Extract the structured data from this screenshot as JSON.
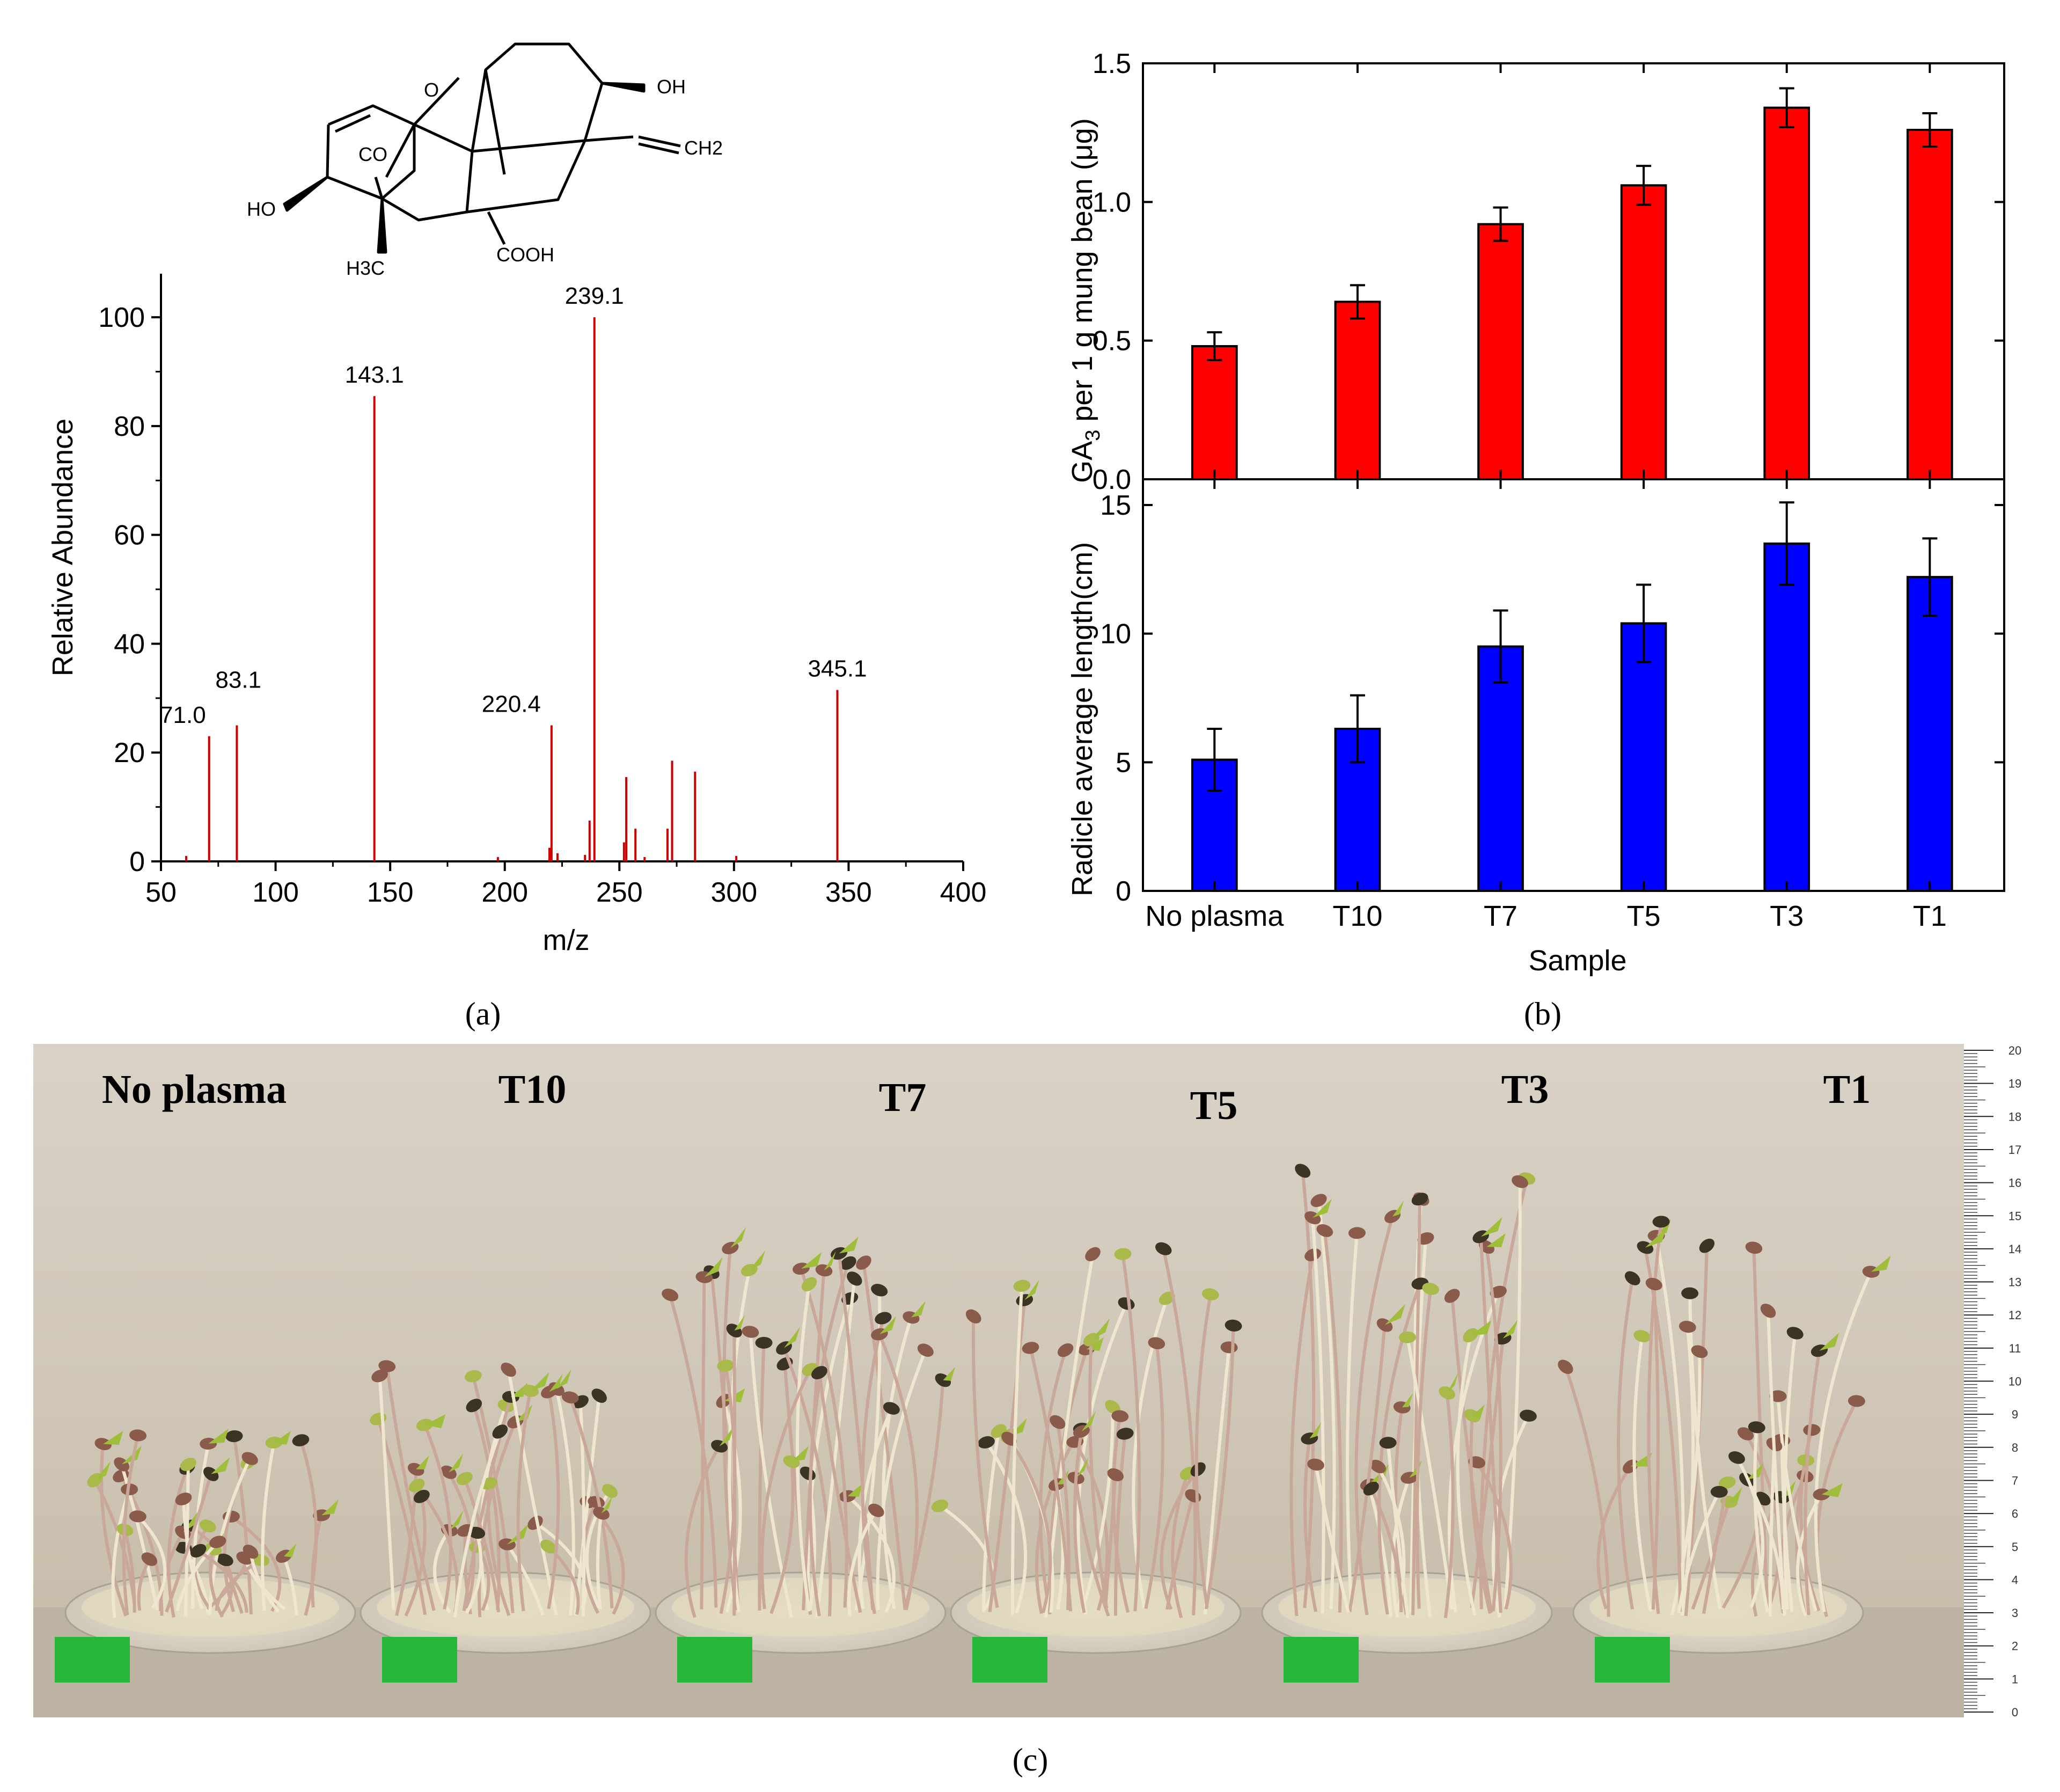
{
  "panel_labels": {
    "a": "(a)",
    "b": "(b)",
    "c": "(c)"
  },
  "structure": {
    "labels": [
      "O",
      "OH",
      "CH2",
      "CO",
      "HO",
      "H3C",
      "COOH"
    ]
  },
  "chart_data": [
    {
      "id": "mass-spectrum",
      "type": "bar",
      "title": "",
      "xlabel": "m/z",
      "ylabel": "Relative Abundance",
      "xlim": [
        50,
        400
      ],
      "ylim": [
        0,
        108
      ],
      "xticks": [
        50,
        100,
        150,
        200,
        250,
        300,
        350,
        400
      ],
      "yticks": [
        0,
        20,
        40,
        60,
        80,
        100
      ],
      "color": "#cc0000",
      "peaks": [
        {
          "x": 61.0,
          "y": 1.0
        },
        {
          "x": 71.0,
          "y": 23,
          "label": "71.0"
        },
        {
          "x": 83.1,
          "y": 25,
          "label": "83.1"
        },
        {
          "x": 143.1,
          "y": 85.5,
          "label": "143.1"
        },
        {
          "x": 197.0,
          "y": 0.8
        },
        {
          "x": 219.5,
          "y": 2.5
        },
        {
          "x": 220.4,
          "y": 25,
          "label": "220.4"
        },
        {
          "x": 223.0,
          "y": 1.5
        },
        {
          "x": 235.0,
          "y": 1.2
        },
        {
          "x": 237.0,
          "y": 7.5
        },
        {
          "x": 239.1,
          "y": 100,
          "label": "239.1"
        },
        {
          "x": 252.0,
          "y": 3.5
        },
        {
          "x": 253.0,
          "y": 15.5
        },
        {
          "x": 257.0,
          "y": 6.0
        },
        {
          "x": 261.0,
          "y": 0.8
        },
        {
          "x": 271.0,
          "y": 6.0
        },
        {
          "x": 273.0,
          "y": 18.5
        },
        {
          "x": 283.0,
          "y": 16.5
        },
        {
          "x": 301.0,
          "y": 1.0
        },
        {
          "x": 345.1,
          "y": 31.5,
          "label": "345.1"
        }
      ]
    },
    {
      "id": "ga3-content",
      "type": "bar",
      "title": "",
      "xlabel": "",
      "ylabel_main": "GA",
      "ylabel_sub": "3",
      "ylabel_rest": " per 1 g mung bean (μg)",
      "categories": [
        "No plasma",
        "T10",
        "T7",
        "T5",
        "T3",
        "T1"
      ],
      "values": [
        0.48,
        0.64,
        0.92,
        1.06,
        1.34,
        1.26
      ],
      "errors": [
        0.05,
        0.06,
        0.06,
        0.07,
        0.07,
        0.06
      ],
      "ylim": [
        0,
        1.5
      ],
      "yticks": [
        "0.0",
        "0.5",
        "1.0",
        "1.5"
      ],
      "color": "#ff0000"
    },
    {
      "id": "radicle-length",
      "type": "bar",
      "title": "",
      "xlabel": "Sample",
      "ylabel": "Radicle average length(cm)",
      "categories": [
        "No plasma",
        "T10",
        "T7",
        "T5",
        "T3",
        "T1"
      ],
      "values": [
        5.1,
        6.3,
        9.5,
        10.4,
        13.5,
        12.2
      ],
      "errors": [
        1.2,
        1.3,
        1.4,
        1.5,
        1.6,
        1.5
      ],
      "ylim": [
        0,
        16
      ],
      "yticks": [
        "0",
        "5",
        "10",
        "15"
      ],
      "color": "#0000ff"
    }
  ],
  "photo": {
    "sample_labels": [
      "No plasma",
      "T10",
      "T7",
      "T5",
      "T3",
      "T1"
    ],
    "ruler_ticks": [
      "20",
      "19",
      "18",
      "17",
      "16",
      "15",
      "14",
      "13",
      "12",
      "11",
      "10",
      "9",
      "8",
      "7",
      "6",
      "5",
      "4",
      "3",
      "2",
      "1",
      "0"
    ]
  }
}
